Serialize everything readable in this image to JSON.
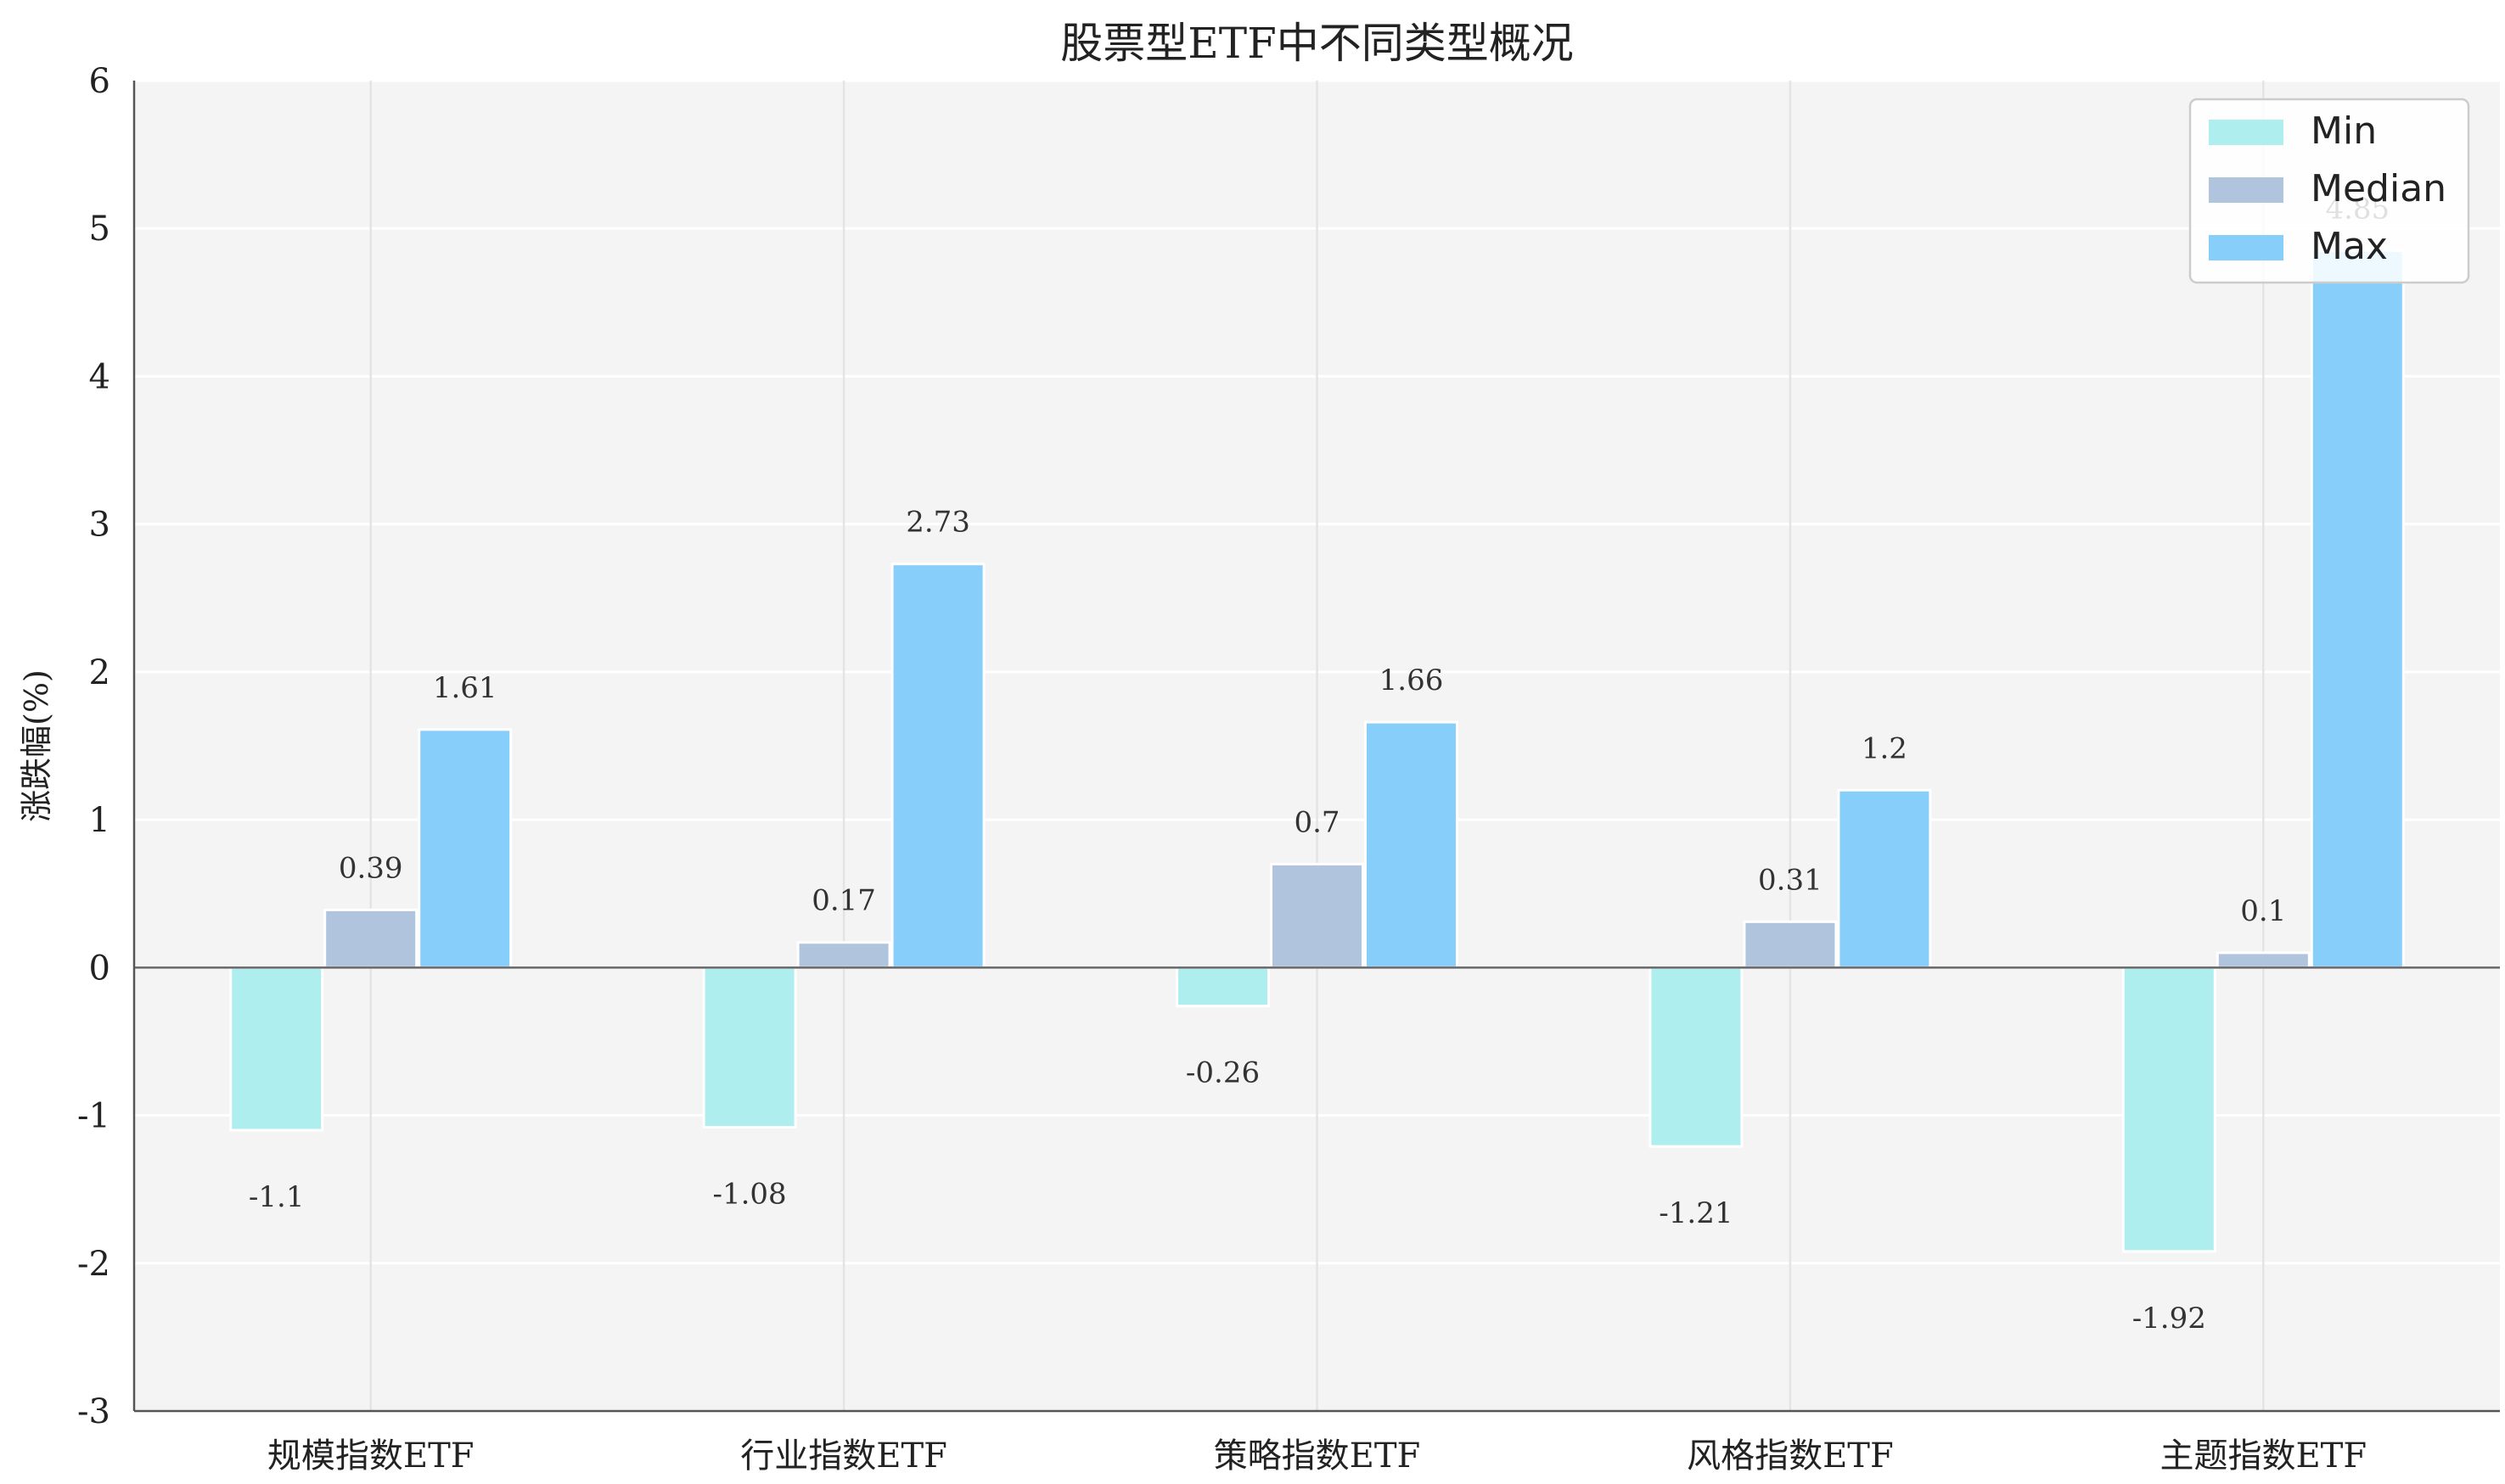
{
  "chart_data": {
    "type": "bar",
    "title": "股票型ETF中不同类型概况",
    "ylabel": "涨跌幅(%)",
    "xlabel": "",
    "ylim": [
      -3,
      6
    ],
    "yticks": [
      -3,
      -2,
      -1,
      0,
      1,
      2,
      3,
      4,
      5,
      6
    ],
    "categories": [
      "规模指数ETF",
      "行业指数ETF",
      "策略指数ETF",
      "风格指数ETF",
      "主题指数ETF"
    ],
    "series": [
      {
        "name": "Min",
        "color": "#AFEEEE",
        "values": [
          -1.1,
          -1.08,
          -0.26,
          -1.21,
          -1.92
        ],
        "labels": [
          "-1.1",
          "-1.08",
          "-0.26",
          "-1.21",
          "-1.92"
        ]
      },
      {
        "name": "Median",
        "color": "#B0C4DE",
        "values": [
          0.39,
          0.17,
          0.7,
          0.31,
          0.1
        ],
        "labels": [
          "0.39",
          "0.17",
          "0.7",
          "0.31",
          "0.1"
        ]
      },
      {
        "name": "Max",
        "color": "#87CEFA",
        "values": [
          1.61,
          2.73,
          1.66,
          1.2,
          4.85
        ],
        "labels": [
          "1.61",
          "2.73",
          "1.66",
          "1.2",
          "4.85"
        ]
      }
    ],
    "grid": true,
    "legend_position": "top-right",
    "background": "#F4F4F4"
  }
}
